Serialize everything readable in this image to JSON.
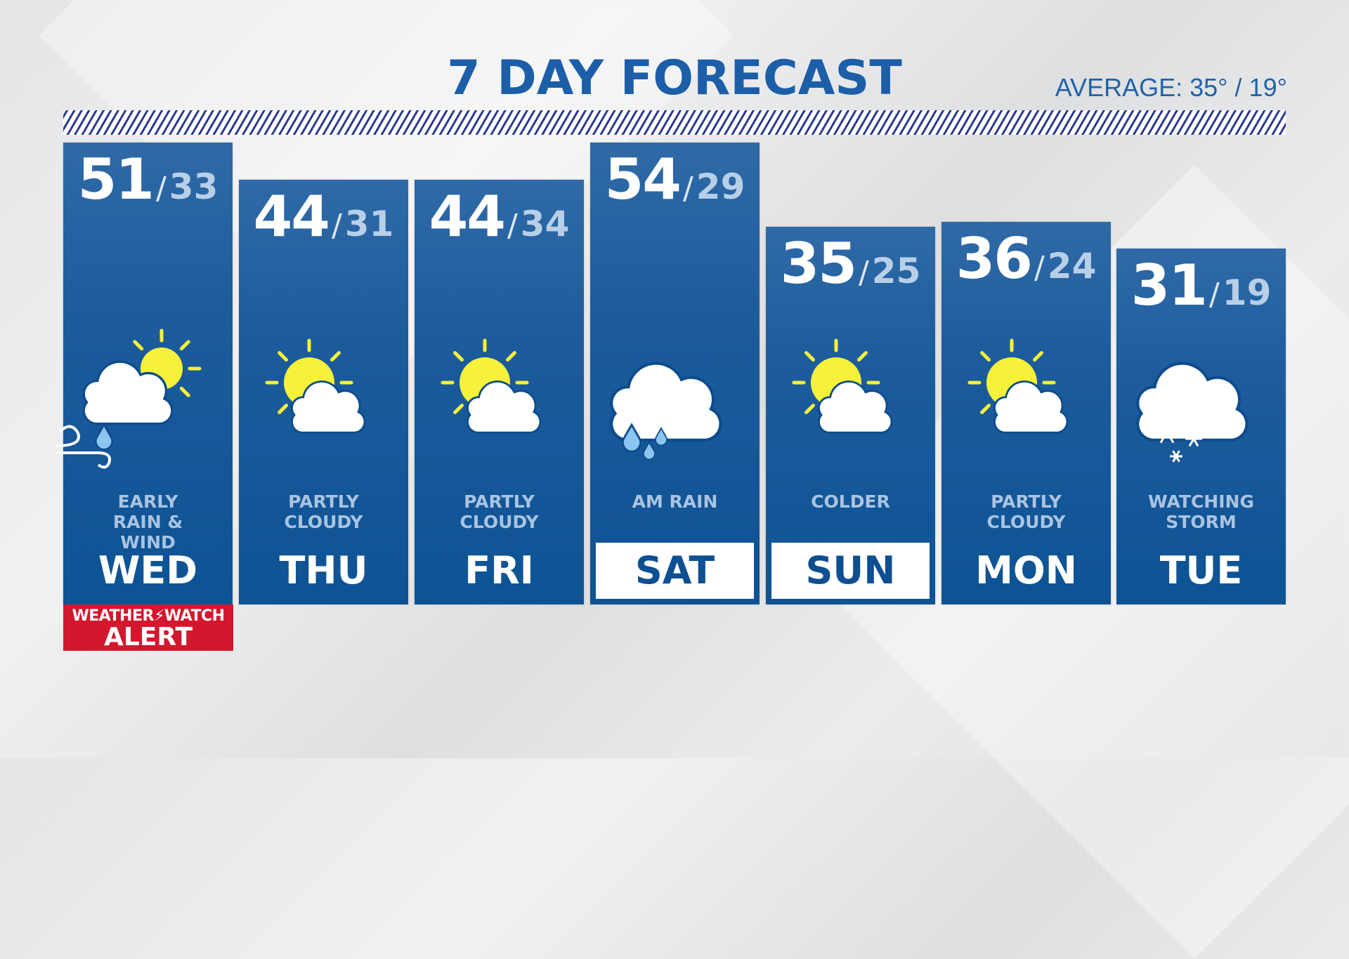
{
  "title": "7 DAY FORECAST",
  "average": "AVERAGE: 35°  / 19°",
  "colors": {
    "title": "#1c5ea8",
    "column": "#0d5394",
    "alert": "#d3172d",
    "sun": "#f6f13a",
    "rain": "#8cc4f2",
    "hatch": "#2d3b8e"
  },
  "days": [
    {
      "day": "WED",
      "hi": "51",
      "lo": "33",
      "condition": "EARLY RAIN & WIND",
      "icon": "rain-wind-sun",
      "highlighted": false
    },
    {
      "day": "THU",
      "hi": "44",
      "lo": "31",
      "condition": "PARTLY CLOUDY",
      "icon": "partly-cloudy",
      "highlighted": false
    },
    {
      "day": "FRI",
      "hi": "44",
      "lo": "34",
      "condition": "PARTLY CLOUDY",
      "icon": "partly-cloudy",
      "highlighted": false
    },
    {
      "day": "SAT",
      "hi": "54",
      "lo": "29",
      "condition": "AM RAIN",
      "icon": "rain",
      "highlighted": true
    },
    {
      "day": "SUN",
      "hi": "35",
      "lo": "25",
      "condition": "COLDER",
      "icon": "partly-cloudy",
      "highlighted": true
    },
    {
      "day": "MON",
      "hi": "36",
      "lo": "24",
      "condition": "PARTLY CLOUDY",
      "icon": "partly-cloudy",
      "highlighted": false
    },
    {
      "day": "TUE",
      "hi": "31",
      "lo": "19",
      "condition": "WATCHING STORM",
      "icon": "snow",
      "highlighted": false
    }
  ],
  "alert": {
    "line1": "WEATHER⚡WATCH",
    "line2": "ALERT"
  }
}
